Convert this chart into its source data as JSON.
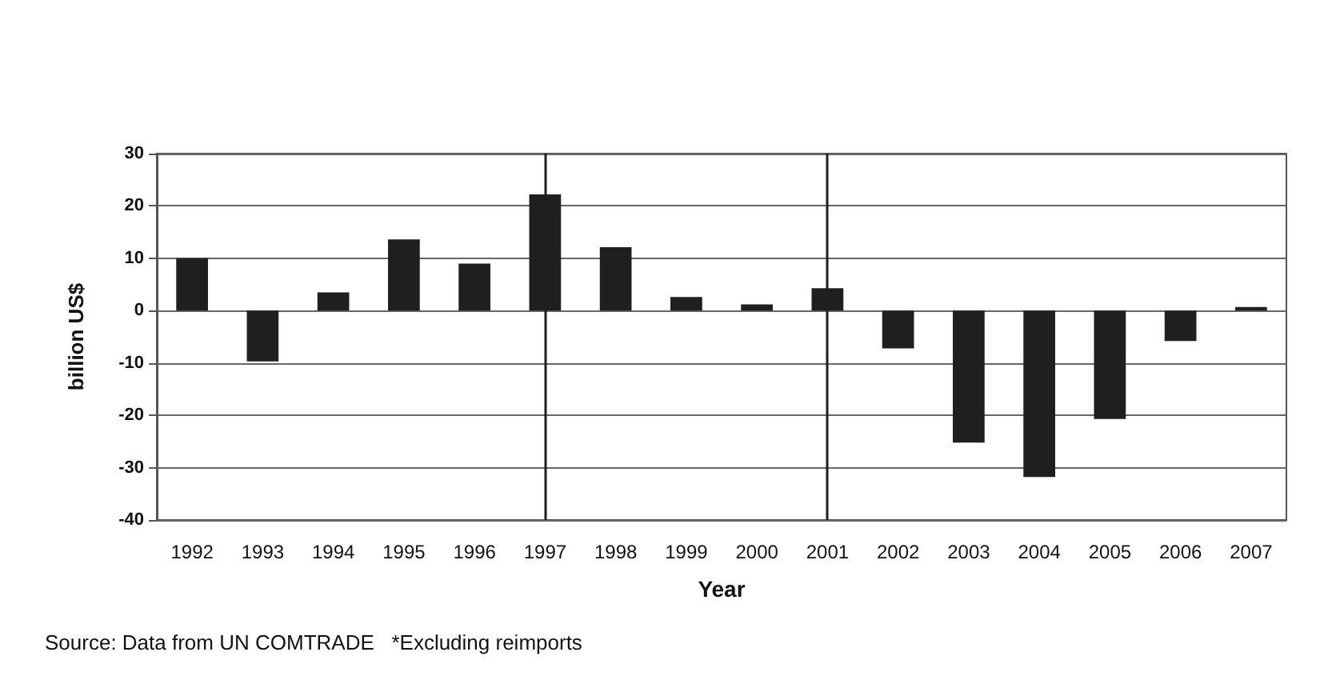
{
  "chart_data": {
    "type": "bar",
    "categories": [
      "1992",
      "1993",
      "1994",
      "1995",
      "1996",
      "1997",
      "1998",
      "1999",
      "2000",
      "2001",
      "2002",
      "2003",
      "2004",
      "2005",
      "2006",
      "2007"
    ],
    "values": [
      10,
      -9.7,
      3.5,
      13.6,
      9,
      22.2,
      12.1,
      2.6,
      1.2,
      4.3,
      -7.2,
      -25.2,
      -31.8,
      -20.7,
      -5.8,
      0.7
    ],
    "color": "#1f1f1f",
    "xlabel": "Year",
    "ylabel": "billion US$",
    "ylim": [
      -40,
      30
    ],
    "yticks": [
      -40,
      -30,
      -20,
      -10,
      0,
      10,
      20,
      30
    ],
    "grid": "y",
    "ref_lines": [
      {
        "axis": "x",
        "value": "1997",
        "color": "#1f1f1f"
      },
      {
        "axis": "x",
        "value": "2001",
        "color": "#1f1f1f"
      }
    ],
    "annotations": [
      "Source: Data from UN COMTRADE   *Excluding reimports"
    ]
  }
}
